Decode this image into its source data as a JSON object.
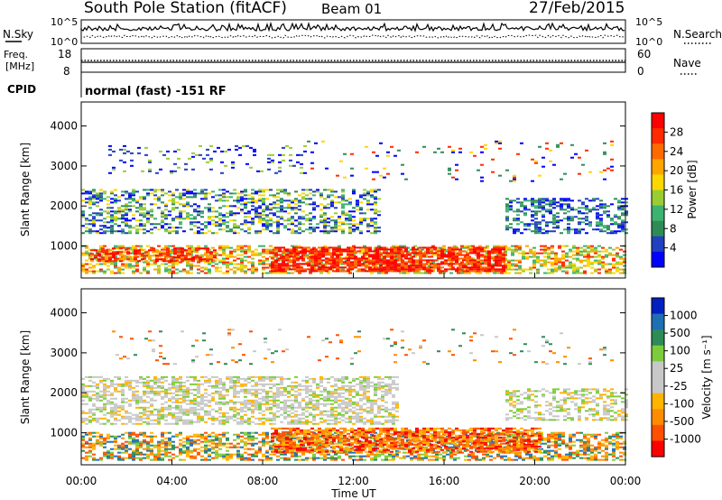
{
  "header": {
    "station": "South Pole Station (fitACF)",
    "beam": "Beam 01",
    "date": "27/Feb/2015"
  },
  "noise_panel": {
    "left_label": "N.Sky",
    "right_label": "N.Search",
    "tick_top": "10^5",
    "tick_bottom": "10^0"
  },
  "freq_panel": {
    "left_label_1": "Freq.",
    "left_label_2": "[MHz]",
    "left_ticks": [
      "18",
      "8"
    ],
    "right_label": "Nave",
    "right_ticks": [
      "60",
      "0"
    ]
  },
  "cpid_panel": {
    "label": "CPID",
    "text": "normal (fast) -151 RF"
  },
  "colors": {
    "power": [
      "#0000ff",
      "#2040c0",
      "#2e8b57",
      "#3cb371",
      "#9acd32",
      "#ffd700",
      "#ffa500",
      "#ff6a00",
      "#ff2a00",
      "#ff0000"
    ],
    "velocity": [
      "#ff0000",
      "#ff5000",
      "#ff8c00",
      "#ffb400",
      "#c8c8c8",
      "#c8c8c8",
      "#7ccd3c",
      "#2e8b57",
      "#1e6fb4",
      "#0020c0"
    ]
  },
  "chart_data": [
    {
      "type": "heatmap",
      "panel": "power",
      "ylabel": "Slant Range [km]",
      "yticks": [
        "1000",
        "2000",
        "3000",
        "4000"
      ],
      "ylim": [
        200,
        4600
      ],
      "colorbar_label": "Power [dB]",
      "colorbar_ticks": [
        "4",
        "8",
        "12",
        "16",
        "20",
        "24",
        "28"
      ]
    },
    {
      "type": "heatmap",
      "panel": "velocity",
      "ylabel": "Slant Range [km]",
      "yticks": [
        "1000",
        "2000",
        "3000",
        "4000"
      ],
      "ylim": [
        200,
        4600
      ],
      "colorbar_label": "Velocity [m s⁻¹]",
      "colorbar_ticks": [
        "1000",
        "500",
        "100",
        "25",
        "-25",
        "-100",
        "-500",
        "-1000"
      ],
      "xlabel": "Time UT",
      "xticks": [
        "00:00",
        "04:00",
        "08:00",
        "12:00",
        "16:00",
        "20:00",
        "00:00"
      ]
    }
  ]
}
